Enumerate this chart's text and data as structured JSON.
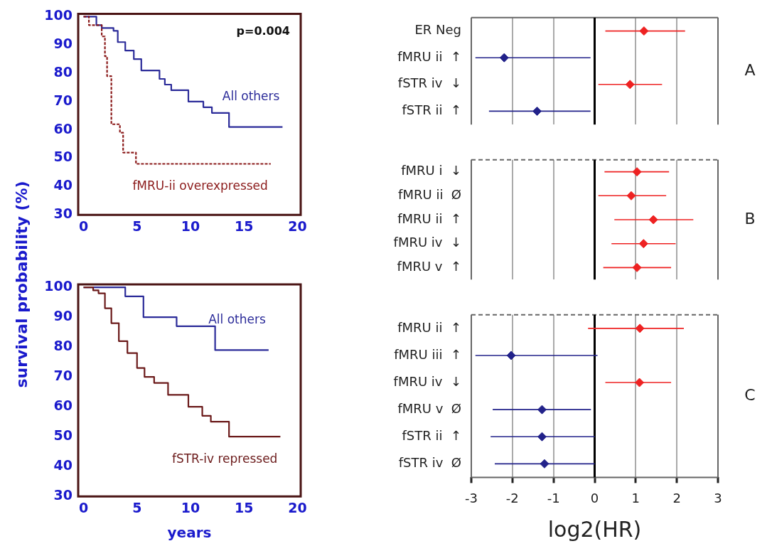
{
  "chart_data": [
    {
      "type": "step",
      "ylabel": "survival probability (%)",
      "annotations": [
        "p=0.004"
      ],
      "xlim": [
        -0.5,
        20.3
      ],
      "ylim": [
        30,
        101
      ],
      "xticks": [
        0,
        5,
        10,
        15,
        20
      ],
      "yticks": [
        30,
        40,
        50,
        60,
        70,
        80,
        90,
        100
      ],
      "marker": "none",
      "series": [
        {
          "name": "All others",
          "color": "#2b2b99",
          "x": [
            0,
            1.2,
            1.7,
            2.8,
            3.2,
            3.9,
            4.7,
            5.4,
            7.1,
            7.6,
            8.2,
            9.8,
            11.2,
            12,
            13.6,
            18.6
          ],
          "values": [
            100,
            97,
            96,
            95,
            91,
            88,
            85,
            81,
            78,
            76,
            74,
            70,
            68,
            66,
            61,
            61
          ]
        },
        {
          "name": "fMRU-ii overexpressed",
          "color": "#8b1a1a",
          "line_style": "dashed",
          "x": [
            0,
            0.5,
            1.7,
            2.0,
            2.2,
            2.6,
            3.4,
            3.7,
            4.9,
            17.5
          ],
          "values": [
            100,
            97,
            93,
            86,
            79,
            62,
            59,
            52,
            48,
            48
          ]
        }
      ]
    },
    {
      "type": "step",
      "xlabel": "years",
      "xlim": [
        -0.5,
        20.3
      ],
      "ylim": [
        30,
        101
      ],
      "xticks": [
        0,
        5,
        10,
        15,
        20
      ],
      "yticks": [
        30,
        40,
        50,
        60,
        70,
        80,
        90,
        100
      ],
      "marker": "none",
      "series": [
        {
          "name": "All others",
          "color": "#2b2b99",
          "x": [
            0,
            3.5,
            3.9,
            5.6,
            8.7,
            12.3,
            17.3
          ],
          "values": [
            100,
            100,
            97,
            90,
            87,
            79,
            79
          ]
        },
        {
          "name": "fSTR-iv repressed",
          "color": "#6b1a1a",
          "x": [
            0,
            0.9,
            1.4,
            2.0,
            2.6,
            3.3,
            4.1,
            5.0,
            5.7,
            6.6,
            7.9,
            9.8,
            11.1,
            11.9,
            13.6,
            18.4
          ],
          "values": [
            100,
            99,
            98,
            93,
            88,
            82,
            78,
            73,
            70,
            68,
            64,
            60,
            57,
            55,
            50,
            50
          ]
        }
      ]
    },
    {
      "type": "scatter",
      "orientation": "horizontal",
      "annotations": [
        "A"
      ],
      "categories": [
        "ER Neg",
        "fMRU ii  ↑",
        "fSTR iv  ↓",
        "fSTR ii  ↑"
      ],
      "values": [
        1.2,
        -2.2,
        0.86,
        -1.4
      ],
      "colors": [
        "#ee2222",
        "#22228a",
        "#ee2222",
        "#22228a"
      ],
      "errors": [
        [
          0.26,
          2.2
        ],
        [
          -2.9,
          -0.1
        ],
        [
          0.09,
          1.64
        ],
        [
          -2.57,
          -0.1
        ]
      ],
      "xlim": [
        -3,
        3
      ],
      "xticks": [
        -3,
        -2,
        -1,
        0,
        1,
        2,
        3
      ],
      "grid": "x",
      "marker": "diamond",
      "tick_labels": "y",
      "ref_lines": [
        {
          "axis": "x",
          "value": 0,
          "color": "#000000"
        }
      ]
    },
    {
      "type": "scatter",
      "orientation": "horizontal",
      "annotations": [
        "B"
      ],
      "categories": [
        "fMRU i  ↓",
        "fMRU ii  Ø",
        "fMRU ii  ↑",
        "fMRU iv  ↓",
        "fMRU v  ↑"
      ],
      "values": [
        1.03,
        0.89,
        1.43,
        1.19,
        1.03
      ],
      "colors": [
        "#ee2222",
        "#ee2222",
        "#ee2222",
        "#ee2222",
        "#ee2222"
      ],
      "errors": [
        [
          0.24,
          1.81
        ],
        [
          0.09,
          1.74
        ],
        [
          0.48,
          2.4
        ],
        [
          0.41,
          1.97
        ],
        [
          0.21,
          1.86
        ]
      ],
      "xlim": [
        -3,
        3
      ],
      "xticks": [
        -3,
        -2,
        -1,
        0,
        1,
        2,
        3
      ],
      "grid": "x",
      "marker": "diamond",
      "tick_labels": "y",
      "ref_lines": [
        {
          "axis": "x",
          "value": 0,
          "color": "#000000"
        }
      ]
    },
    {
      "type": "scatter",
      "orientation": "horizontal",
      "annotations": [
        "C"
      ],
      "xlabel": "log2(HR)",
      "categories": [
        "fMRU ii  ↑",
        "fMRU iii  ↑",
        "fMRU iv  ↓",
        "fMRU v  Ø",
        "fSTR ii  ↑",
        "fSTR iv  Ø"
      ],
      "values": [
        1.1,
        -2.03,
        1.09,
        -1.28,
        -1.28,
        -1.22
      ],
      "colors": [
        "#ee2222",
        "#22228a",
        "#ee2222",
        "#22228a",
        "#22228a",
        "#22228a"
      ],
      "errors": [
        [
          -0.16,
          2.17
        ],
        [
          -2.9,
          0.07
        ],
        [
          0.26,
          1.86
        ],
        [
          -2.48,
          -0.09
        ],
        [
          -2.53,
          0
        ],
        [
          -2.43,
          0
        ]
      ],
      "xlim": [
        -3,
        3
      ],
      "xticks": [
        -3,
        -2,
        -1,
        0,
        1,
        2,
        3
      ],
      "grid": "x",
      "marker": "diamond",
      "ref_lines": [
        {
          "axis": "x",
          "value": 0,
          "color": "#000000"
        }
      ]
    }
  ]
}
